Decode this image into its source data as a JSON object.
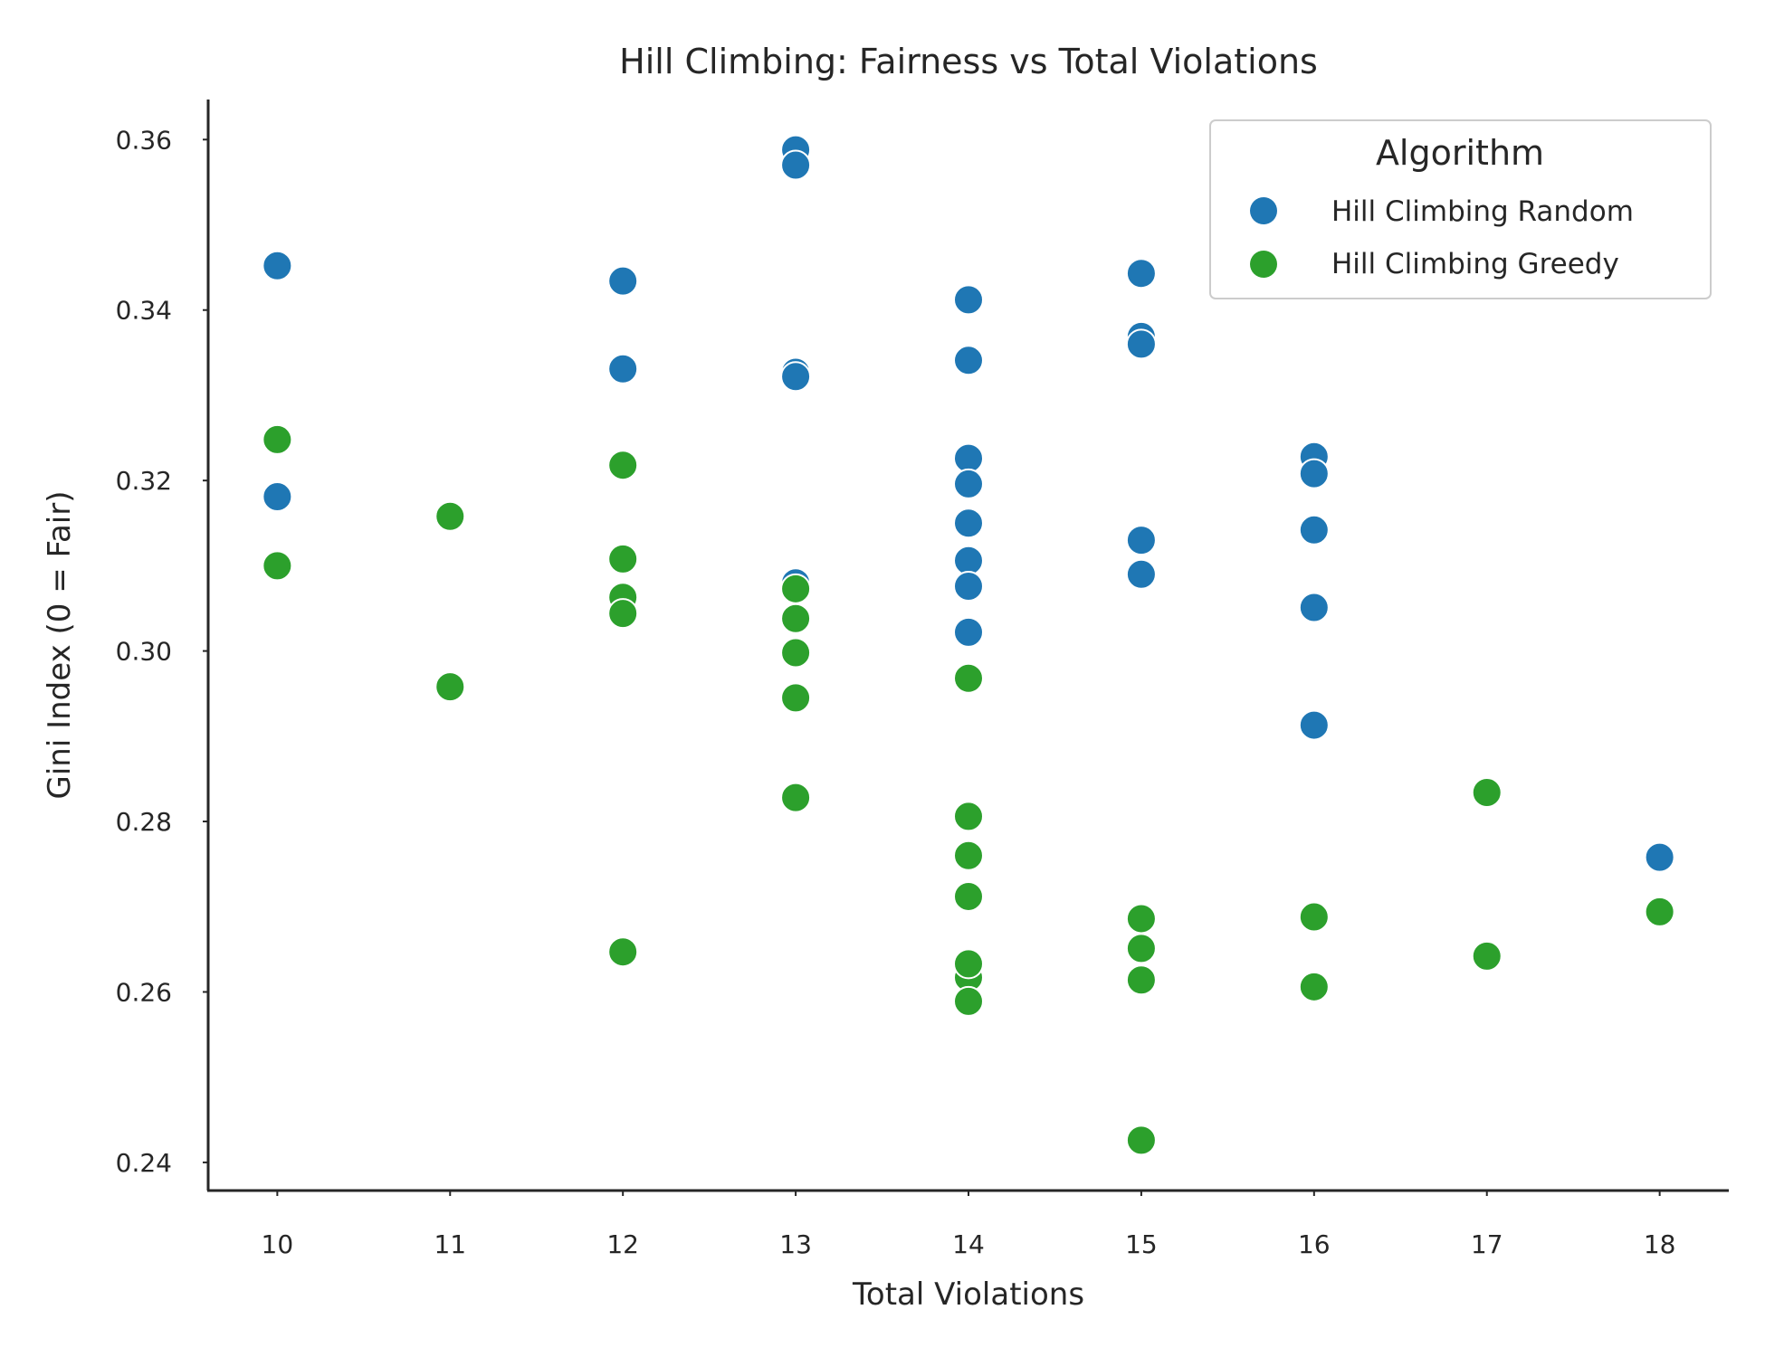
{
  "chart_data": {
    "type": "scatter",
    "title": "Hill Climbing: Fairness vs Total Violations",
    "xlabel": "Total Violations",
    "ylabel": "Gini Index (0 = Fair)",
    "xlim": [
      9.6,
      18.4
    ],
    "ylim": [
      0.2367,
      0.3647
    ],
    "xticks": [
      10,
      11,
      12,
      13,
      14,
      15,
      16,
      17,
      18
    ],
    "yticks": [
      0.24,
      0.26,
      0.28,
      0.3,
      0.32,
      0.34,
      0.36
    ],
    "ytick_labels": [
      "0.24",
      "0.26",
      "0.28",
      "0.30",
      "0.32",
      "0.34",
      "0.36"
    ],
    "grid": false,
    "legend": {
      "title": "Algorithm",
      "placement": "top-right"
    },
    "series": [
      {
        "name": "Hill Climbing Random",
        "color": "#1f77b4",
        "points": [
          [
            10,
            0.3452
          ],
          [
            10,
            0.3181
          ],
          [
            12,
            0.3434
          ],
          [
            12,
            0.3331
          ],
          [
            13,
            0.3588
          ],
          [
            13,
            0.357
          ],
          [
            13,
            0.3327
          ],
          [
            13,
            0.3322
          ],
          [
            13,
            0.308
          ],
          [
            14,
            0.3412
          ],
          [
            14,
            0.3341
          ],
          [
            14,
            0.3226
          ],
          [
            14,
            0.3196
          ],
          [
            14,
            0.315
          ],
          [
            14,
            0.3106
          ],
          [
            14,
            0.3076
          ],
          [
            14,
            0.3022
          ],
          [
            15,
            0.3443
          ],
          [
            15,
            0.3369
          ],
          [
            15,
            0.336
          ],
          [
            15,
            0.313
          ],
          [
            15,
            0.309
          ],
          [
            16,
            0.3228
          ],
          [
            16,
            0.3208
          ],
          [
            16,
            0.3142
          ],
          [
            16,
            0.3051
          ],
          [
            16,
            0.2913
          ],
          [
            18,
            0.2758
          ]
        ]
      },
      {
        "name": "Hill Climbing Greedy",
        "color": "#2ca02c",
        "points": [
          [
            10,
            0.3248
          ],
          [
            10,
            0.31
          ],
          [
            11,
            0.3158
          ],
          [
            11,
            0.2958
          ],
          [
            12,
            0.3218
          ],
          [
            12,
            0.3108
          ],
          [
            12,
            0.3063
          ],
          [
            12,
            0.3044
          ],
          [
            12,
            0.2647
          ],
          [
            13,
            0.3073
          ],
          [
            13,
            0.3038
          ],
          [
            13,
            0.2998
          ],
          [
            13,
            0.2945
          ],
          [
            13,
            0.2828
          ],
          [
            14,
            0.2968
          ],
          [
            14,
            0.2806
          ],
          [
            14,
            0.276
          ],
          [
            14,
            0.2712
          ],
          [
            14,
            0.2617
          ],
          [
            14,
            0.2633
          ],
          [
            14,
            0.2589
          ],
          [
            15,
            0.2686
          ],
          [
            15,
            0.2651
          ],
          [
            15,
            0.2614
          ],
          [
            15,
            0.2426
          ],
          [
            16,
            0.2688
          ],
          [
            16,
            0.2606
          ],
          [
            17,
            0.2834
          ],
          [
            17,
            0.2642
          ],
          [
            18,
            0.2694
          ]
        ]
      }
    ]
  }
}
